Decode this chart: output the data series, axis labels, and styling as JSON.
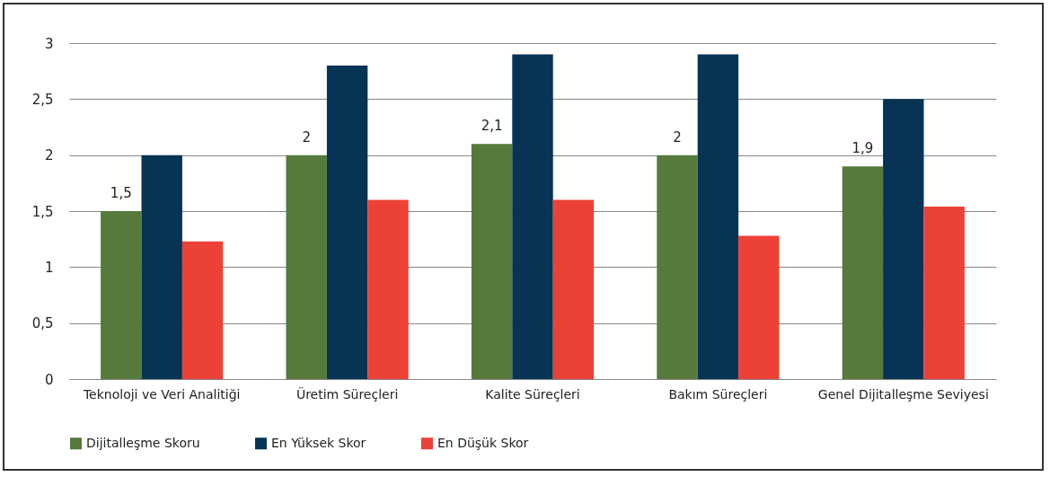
{
  "chart_data": {
    "type": "bar",
    "categories": [
      "Teknoloji ve Veri Analitiği",
      "Üretim Süreçleri",
      "Kalite Süreçleri",
      "Bakım Süreçleri",
      "Genel Dijitalleşme Seviyesi"
    ],
    "series": [
      {
        "name": "Dijitalleşme Skoru",
        "color": "#557a3c",
        "values": [
          1.5,
          2,
          2.1,
          2,
          1.9
        ],
        "value_labels": [
          "1,5",
          "2",
          "2,1",
          "2",
          "1,9"
        ]
      },
      {
        "name": "En Yüksek Skor",
        "color": "#073355",
        "values": [
          2.0,
          2.8,
          2.9,
          2.9,
          2.5
        ]
      },
      {
        "name": "En Düşük Skor",
        "color": "#ec4137",
        "values": [
          1.23,
          1.6,
          1.6,
          1.28,
          1.54
        ]
      }
    ],
    "ylim": [
      0,
      3
    ],
    "yticks": [
      0,
      {
        "value": 0.5,
        "label": "0,5"
      },
      1,
      {
        "value": 1.5,
        "label": "1,5"
      },
      2,
      {
        "value": 2.5,
        "label": "2,5"
      },
      3
    ],
    "grid": "y",
    "legend": "bottom"
  }
}
